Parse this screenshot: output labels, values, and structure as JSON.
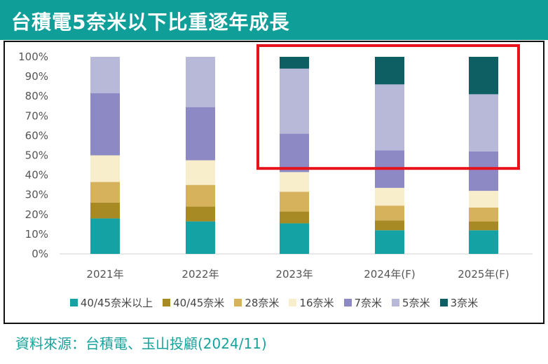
{
  "header": {
    "title": "台積電5奈米以下比重逐年成長"
  },
  "source": "資料來源：台積電、玉山投顧(2024/11)",
  "chart_data": {
    "type": "bar",
    "stacked": true,
    "percent": true,
    "categories": [
      "2021年",
      "2022年",
      "2023年",
      "2024年(F)",
      "2025年(F)"
    ],
    "yticks": [
      "0%",
      "10%",
      "20%",
      "30%",
      "40%",
      "50%",
      "60%",
      "70%",
      "80%",
      "90%",
      "100%"
    ],
    "ylim": [
      0,
      100
    ],
    "grid": false,
    "legend_position": "bottom",
    "highlight": {
      "categories": [
        "2023年",
        "2024年(F)",
        "2025年(F)"
      ],
      "range": [
        43,
        100
      ],
      "color": "#e8121b"
    },
    "series": [
      {
        "name": "40/45奈米以上",
        "color": "#14a2a4",
        "values": [
          18,
          16.5,
          15.5,
          12,
          12
        ]
      },
      {
        "name": "40/45奈米",
        "color": "#a78a24",
        "values": [
          8,
          7.5,
          6,
          5,
          4.5
        ]
      },
      {
        "name": "28奈米",
        "color": "#d6b25c",
        "values": [
          10.5,
          11,
          10,
          7.5,
          7
        ]
      },
      {
        "name": "16奈米",
        "color": "#f8eecb",
        "values": [
          13.5,
          12.5,
          10,
          9,
          8.5
        ]
      },
      {
        "name": "7奈米",
        "color": "#8c89c5",
        "values": [
          31.5,
          27,
          19.5,
          19,
          20
        ]
      },
      {
        "name": "5奈米",
        "color": "#b8b8d9",
        "values": [
          18.5,
          25.5,
          33,
          33.5,
          29
        ]
      },
      {
        "name": "3奈米",
        "color": "#0e5f64",
        "values": [
          0,
          0,
          6,
          14,
          19
        ]
      }
    ]
  }
}
